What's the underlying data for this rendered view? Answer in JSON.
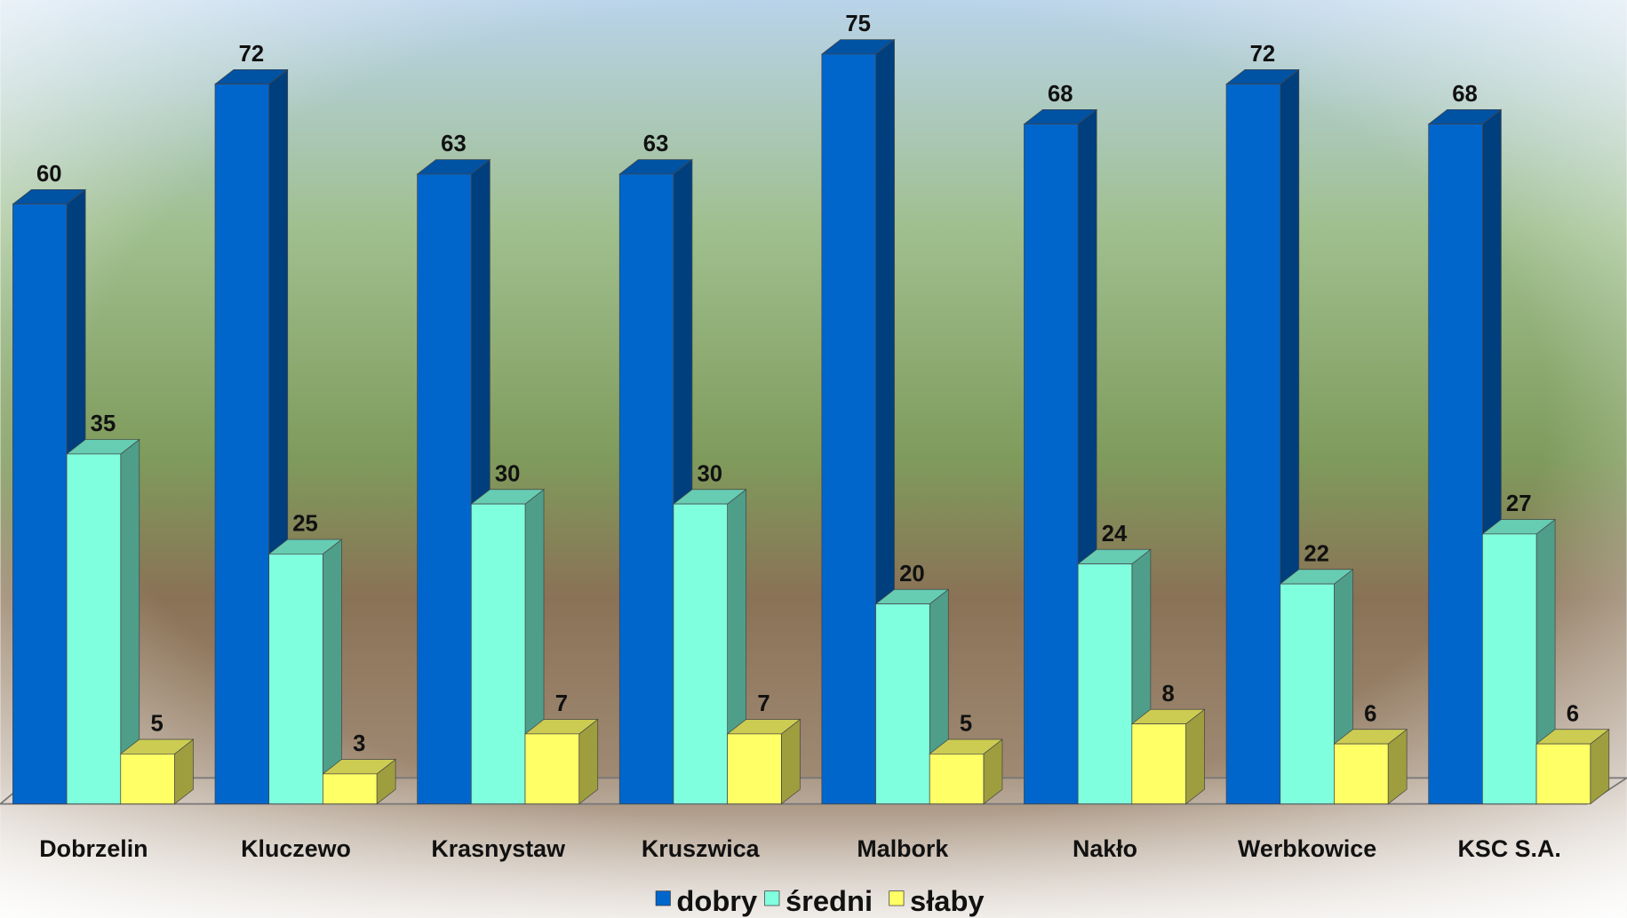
{
  "chart_data": {
    "type": "bar3d",
    "categories": [
      "Dobrzelin",
      "Kluczewo",
      "Krasnystaw",
      "Kruszwica",
      "Malbork",
      "Nakło",
      "Werbkowice",
      "KSC S.A."
    ],
    "series": [
      {
        "name": "dobry",
        "color": "#0066cc",
        "values": [
          60,
          72,
          63,
          63,
          75,
          68,
          72,
          68
        ]
      },
      {
        "name": "średni",
        "color": "#80ffdf",
        "values": [
          35,
          25,
          30,
          30,
          20,
          24,
          22,
          27
        ]
      },
      {
        "name": "słaby",
        "color": "#ffff66",
        "values": [
          5,
          3,
          7,
          7,
          5,
          8,
          6,
          6
        ]
      }
    ],
    "ylim": [
      0,
      80
    ],
    "legend": "bottom"
  }
}
